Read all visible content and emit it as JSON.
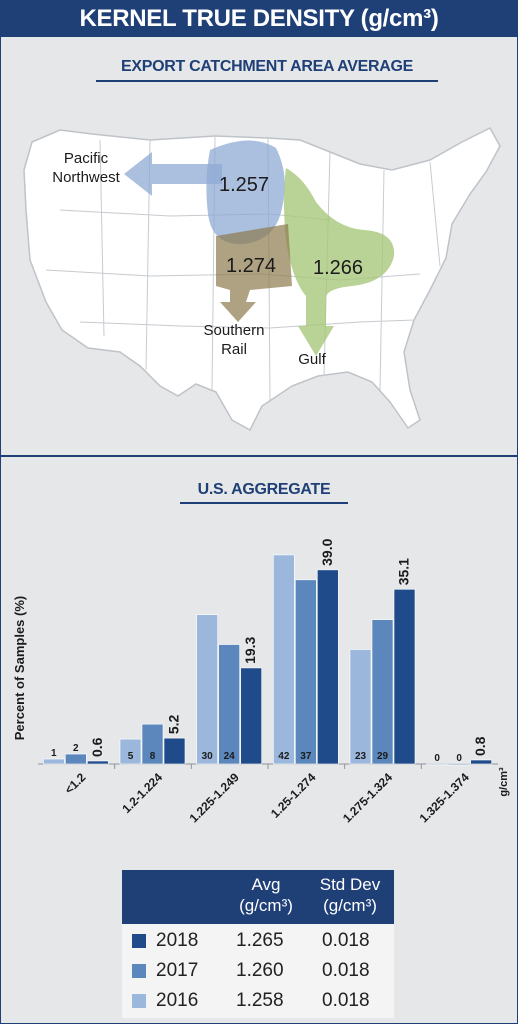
{
  "header": {
    "title": "KERNEL TRUE DENSITY (g/cm³)"
  },
  "map": {
    "title": "EXPORT CATCHMENT AREA AVERAGE",
    "regions": [
      {
        "value": "1.257",
        "label_lines": [
          "Pacific",
          "Northwest"
        ],
        "color": "#8fa9d4"
      },
      {
        "value": "1.274",
        "label_lines": [
          "Southern",
          "Rail"
        ],
        "color": "#8c7a4f"
      },
      {
        "value": "1.266",
        "label_lines": [
          "Gulf"
        ],
        "color": "#a8c77a"
      }
    ]
  },
  "chart_data": {
    "type": "bar",
    "title": "U.S. AGGREGATE",
    "ylabel": "Percent of Samples (%)",
    "xunit": "g/cm³",
    "categories": [
      "<1.2",
      "1.2-1.224",
      "1.225-1.249",
      "1.25-1.274",
      "1.275-1.324",
      "1.325-1.374"
    ],
    "ylim": [
      0,
      45
    ],
    "series": [
      {
        "name": "2016",
        "color": "#9bb8dc",
        "values": [
          1,
          5,
          30,
          42,
          23,
          0
        ],
        "labels": [
          "1",
          "5",
          "30",
          "42",
          "23",
          "0"
        ]
      },
      {
        "name": "2017",
        "color": "#5b87bd",
        "values": [
          2,
          8,
          24,
          37,
          29,
          0
        ],
        "labels": [
          "2",
          "8",
          "24",
          "37",
          "29",
          "0"
        ]
      },
      {
        "name": "2018",
        "color": "#1f4b8a",
        "values": [
          0.6,
          5.2,
          19.3,
          39.0,
          35.1,
          0.8
        ],
        "labels": [
          "0.6",
          "5.2",
          "19.3",
          "39.0",
          "35.1",
          "0.8"
        ]
      }
    ]
  },
  "stats_table": {
    "headers": {
      "avg": [
        "Avg",
        "(g/cm³)"
      ],
      "std": [
        "Std Dev",
        "(g/cm³)"
      ]
    },
    "rows": [
      {
        "year": "2018",
        "avg": "1.265",
        "std": "0.018",
        "color": "#1f4b8a"
      },
      {
        "year": "2017",
        "avg": "1.260",
        "std": "0.018",
        "color": "#5b87bd"
      },
      {
        "year": "2016",
        "avg": "1.258",
        "std": "0.018",
        "color": "#9bb8dc"
      }
    ]
  }
}
